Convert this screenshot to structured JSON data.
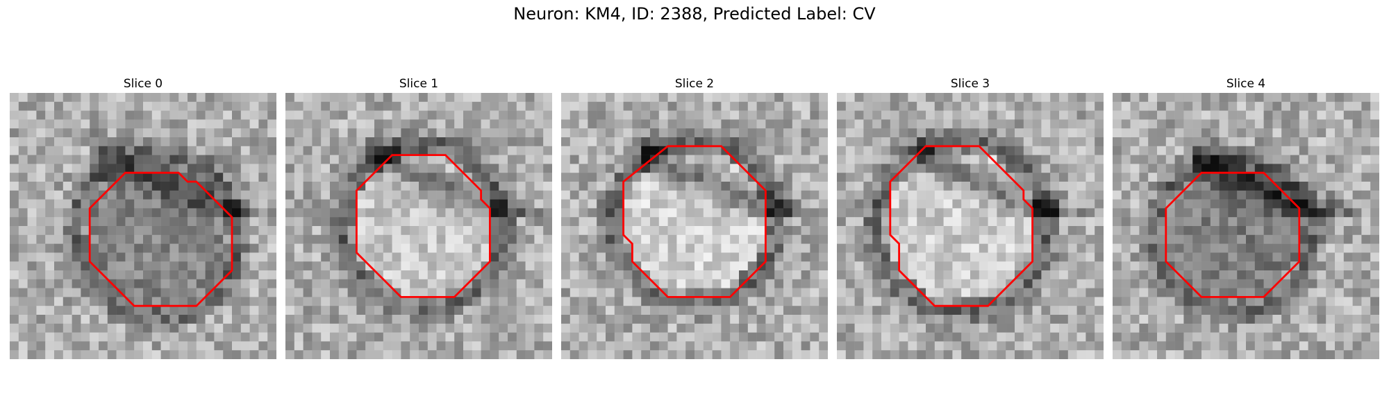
{
  "figure": {
    "title": "Neuron: KM4, ID: 2388, Predicted Label: CV"
  },
  "panels": [
    {
      "title": "Slice 0"
    },
    {
      "title": "Slice 1"
    },
    {
      "title": "Slice 2"
    },
    {
      "title": "Slice 3"
    },
    {
      "title": "Slice 4"
    }
  ],
  "colors": {
    "contour": "#ff0000",
    "background": "#ffffff"
  }
}
